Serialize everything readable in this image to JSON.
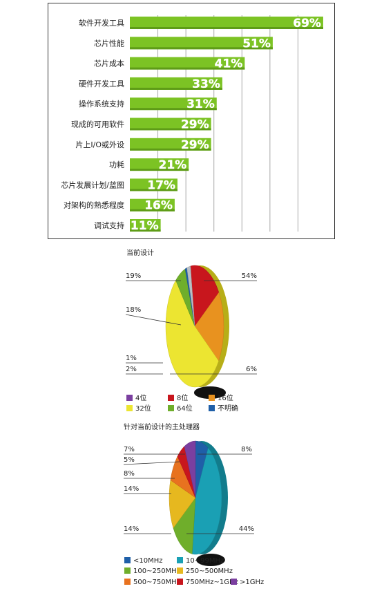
{
  "chart_data": [
    {
      "type": "bar",
      "orientation": "horizontal",
      "categories": [
        "软件开发工具",
        "芯片性能",
        "芯片成本",
        "硬件开发工具",
        "操作系统支持",
        "现成的可用软件",
        "片上I/O或外设",
        "功耗",
        "芯片发展计划/蓝图",
        "对架构的熟悉程度",
        "调试支持"
      ],
      "values": [
        69,
        51,
        41,
        33,
        31,
        29,
        29,
        21,
        17,
        16,
        11
      ],
      "value_labels": [
        "69%",
        "51%",
        "41%",
        "33%",
        "31%",
        "29%",
        "29%",
        "21%",
        "17%",
        "16%",
        "11%"
      ],
      "xlim": [
        0,
        70
      ],
      "grid": true,
      "bar_color": "#7cc324"
    },
    {
      "type": "pie",
      "title": "当前设计",
      "slices": [
        {
          "label": "4位",
          "value": 0,
          "pct_label": "",
          "color": "#7b3fa0"
        },
        {
          "label": "8位",
          "value": 18,
          "pct_label": "18%",
          "color": "#c8161d"
        },
        {
          "label": "16位",
          "value": 19,
          "pct_label": "19%",
          "color": "#e8921f"
        },
        {
          "label": "32位",
          "value": 54,
          "pct_label": "54%",
          "color": "#ece531"
        },
        {
          "label": "64位",
          "value": 6,
          "pct_label": "6%",
          "color": "#6fae2b"
        },
        {
          "label": "不明确",
          "value": 1,
          "pct_label": "1%",
          "color": "#1f5fa8"
        },
        {
          "label": "",
          "value": 2,
          "pct_label": "2%",
          "color": "#b9bfc4"
        }
      ],
      "legend": [
        "4位",
        "8位",
        "16位",
        "32位",
        "64位",
        "不明确"
      ]
    },
    {
      "type": "pie",
      "title": "针对当前设计的主处理器",
      "slices": [
        {
          "label": "<10MHz",
          "value": 8,
          "pct_label": "8%",
          "color": "#1f5fa8"
        },
        {
          "label": "10~99MHz",
          "value": 44,
          "pct_label": "44%",
          "color": "#1aa0b4"
        },
        {
          "label": "100~250MHz",
          "value": 14,
          "pct_label": "14%",
          "color": "#6fae2b"
        },
        {
          "label": "250~500MHz",
          "value": 14,
          "pct_label": "14%",
          "color": "#e6b81f"
        },
        {
          "label": "500~750MHz",
          "value": 8,
          "pct_label": "8%",
          "color": "#e8721f"
        },
        {
          "label": "750MHz~1GHz",
          "value": 5,
          "pct_label": "5%",
          "color": "#c8161d"
        },
        {
          "label": ">1GHz",
          "value": 7,
          "pct_label": "7%",
          "color": "#7b3fa0"
        }
      ],
      "legend": [
        "<10MHz",
        "10~99MHz",
        "100~250MHz",
        "250~500MHz",
        "500~750MHz",
        "750MHz~1GHz",
        ">1GHz"
      ]
    }
  ]
}
